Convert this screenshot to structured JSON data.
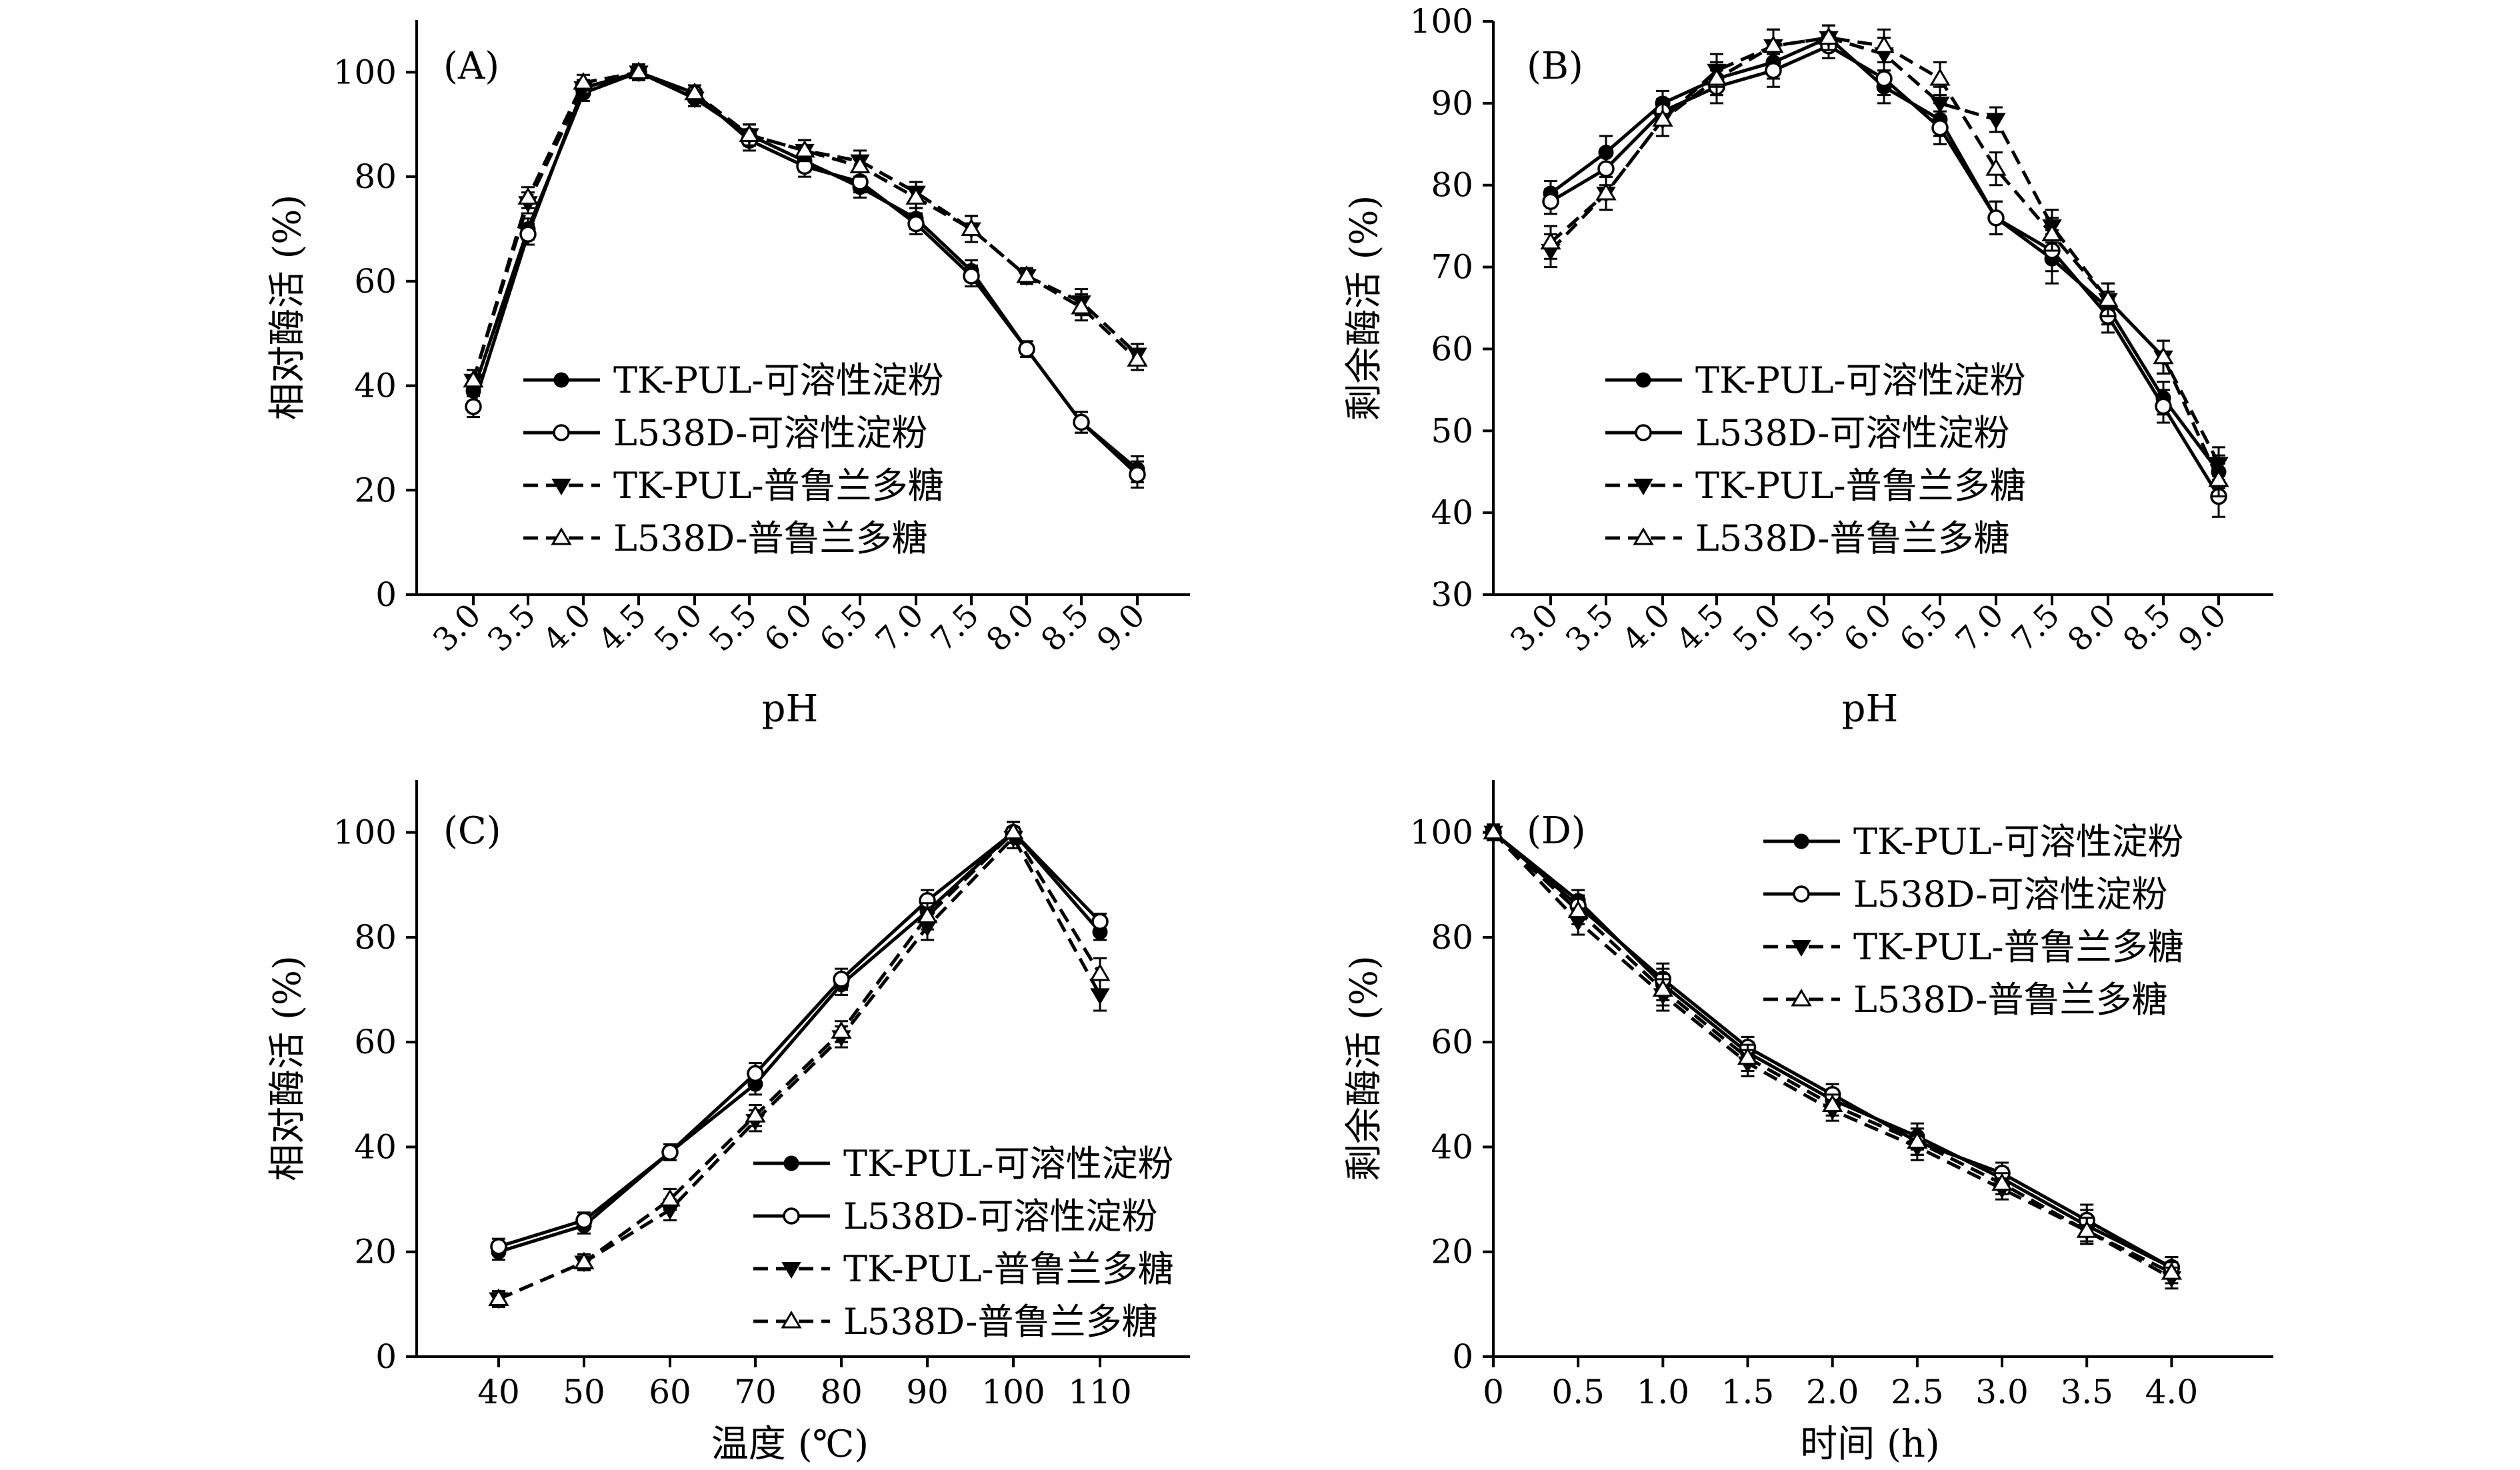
{
  "legend_entries": [
    "TK-PUL-可溶性淀粉",
    "L538D-可溶性淀粉",
    "TK-PUL-普鲁兰多糖",
    "L538D-普鲁兰多糖"
  ],
  "chart_data": [
    {
      "panel": "(A)",
      "type": "line",
      "xlabel": "pH",
      "ylabel": "相对酶活 (%)",
      "categories": [
        "3.0",
        "3.5",
        "4.0",
        "4.5",
        "5.0",
        "5.5",
        "6.0",
        "6.5",
        "7.0",
        "7.5",
        "8.0",
        "8.5",
        "9.0"
      ],
      "ylim": [
        0,
        110
      ],
      "yticks": [
        0,
        20,
        40,
        60,
        80,
        100
      ],
      "legend_position": "center-left",
      "series": [
        {
          "name": "TK-PUL-可溶性淀粉",
          "values": [
            39,
            70,
            96,
            100,
            95,
            88,
            83,
            78,
            72,
            62,
            47,
            33,
            24
          ],
          "err": [
            2,
            2,
            1.5,
            1.5,
            1.5,
            2,
            2,
            2,
            2,
            2,
            1.5,
            2,
            2.5
          ]
        },
        {
          "name": "L538D-可溶性淀粉",
          "values": [
            36,
            69,
            97,
            100,
            96,
            87,
            82,
            79,
            71,
            61,
            47,
            33,
            23
          ],
          "err": [
            2,
            2,
            1.5,
            1.5,
            1.5,
            2,
            2,
            2,
            2,
            2,
            1.5,
            2,
            2.5
          ]
        },
        {
          "name": "TK-PUL-普鲁兰多糖",
          "values": [
            41,
            75,
            97,
            100,
            95,
            88,
            85,
            83,
            77,
            70,
            61,
            56,
            46
          ],
          "err": [
            2,
            2,
            1.5,
            1.5,
            1.5,
            2,
            2,
            2,
            2,
            2.5,
            1.5,
            2.5,
            2
          ]
        },
        {
          "name": "L538D-普鲁兰多糖",
          "values": [
            41,
            76,
            98,
            100,
            96,
            88,
            85,
            82,
            76,
            70,
            61,
            55,
            45
          ],
          "err": [
            2,
            2,
            1.5,
            1.5,
            1.5,
            2,
            2,
            2,
            2,
            2.5,
            1.5,
            2.5,
            2
          ]
        }
      ]
    },
    {
      "panel": "(B)",
      "type": "line",
      "xlabel": "pH",
      "ylabel": "剩余酶活 (%)",
      "categories": [
        "3.0",
        "3.5",
        "4.0",
        "4.5",
        "5.0",
        "5.5",
        "6.0",
        "6.5",
        "7.0",
        "7.5",
        "8.0",
        "8.5",
        "9.0"
      ],
      "ylim": [
        30,
        100
      ],
      "yticks": [
        30,
        40,
        50,
        60,
        70,
        80,
        90,
        100
      ],
      "legend_position": "center-left",
      "series": [
        {
          "name": "TK-PUL-可溶性淀粉",
          "values": [
            79,
            84,
            90,
            93,
            95,
            98,
            92,
            88,
            76,
            71,
            65,
            54,
            45
          ],
          "err": [
            1.5,
            2,
            1.5,
            2,
            2,
            1.5,
            2,
            2,
            2,
            3,
            2,
            2,
            2
          ]
        },
        {
          "name": "L538D-可溶性淀粉",
          "values": [
            78,
            82,
            89,
            92,
            94,
            97,
            93,
            87,
            76,
            72,
            64,
            53,
            42
          ],
          "err": [
            1.5,
            2,
            1.5,
            2,
            2,
            1.5,
            2,
            2,
            2,
            2.5,
            2,
            2,
            2.5
          ]
        },
        {
          "name": "TK-PUL-普鲁兰多糖",
          "values": [
            72,
            79,
            88,
            94,
            97,
            98,
            96,
            90,
            88,
            75,
            66,
            59,
            46
          ],
          "err": [
            2,
            2,
            2,
            2,
            2,
            1.5,
            2,
            2,
            1.5,
            2,
            2,
            2,
            2
          ]
        },
        {
          "name": "L538D-普鲁兰多糖",
          "values": [
            73,
            79,
            88,
            93,
            97,
            98,
            97,
            93,
            82,
            74,
            66,
            59,
            44
          ],
          "err": [
            2,
            2,
            2,
            2,
            2,
            1.5,
            2,
            2,
            2,
            2,
            2,
            2,
            2
          ]
        }
      ]
    },
    {
      "panel": "(C)",
      "type": "line",
      "xlabel": "温度 (℃)",
      "ylabel": "相对酶活 (%)",
      "categories": [
        "40",
        "50",
        "60",
        "70",
        "80",
        "90",
        "100",
        "110"
      ],
      "ylim": [
        0,
        110
      ],
      "yticks": [
        0,
        20,
        40,
        60,
        80,
        100
      ],
      "legend_position": "bottom-right",
      "series": [
        {
          "name": "TK-PUL-可溶性淀粉",
          "values": [
            20,
            25,
            39,
            52,
            71,
            85,
            100,
            81
          ],
          "err": [
            1.5,
            1.5,
            1.5,
            2,
            2,
            2,
            2,
            1.5
          ]
        },
        {
          "name": "L538D-可溶性淀粉",
          "values": [
            21,
            26,
            39,
            54,
            72,
            87,
            100,
            83
          ],
          "err": [
            1.5,
            1.5,
            1.5,
            2,
            2,
            2,
            2,
            1.5
          ]
        },
        {
          "name": "TK-PUL-普鲁兰多糖",
          "values": [
            11,
            18,
            28,
            45,
            61,
            82,
            99,
            69
          ],
          "err": [
            1.5,
            1.5,
            2,
            2,
            2,
            2.5,
            2,
            3
          ]
        },
        {
          "name": "L538D-普鲁兰多糖",
          "values": [
            11,
            18,
            30,
            46,
            62,
            84,
            100,
            73
          ],
          "err": [
            1.5,
            1.5,
            2,
            2,
            2,
            2.5,
            2,
            3
          ]
        }
      ]
    },
    {
      "panel": "(D)",
      "type": "line",
      "xlabel": "时间 (h)",
      "ylabel": "剩余酶活 (%)",
      "x": [
        0,
        0.5,
        1.0,
        1.5,
        2.0,
        2.5,
        3.0,
        3.5,
        4.0
      ],
      "xticks": [
        "0",
        "0.5",
        "1.0",
        "1.5",
        "2.0",
        "2.5",
        "3.0",
        "3.5",
        "4.0"
      ],
      "xlim": [
        0,
        4.6
      ],
      "ylim": [
        0,
        110
      ],
      "yticks": [
        0,
        20,
        40,
        60,
        80,
        100
      ],
      "legend_position": "top-right",
      "series": [
        {
          "name": "TK-PUL-可溶性淀粉",
          "values": [
            100,
            87,
            71,
            58,
            49,
            42,
            34,
            25,
            17
          ],
          "err": [
            1.5,
            2,
            3,
            2,
            2,
            2.5,
            2,
            3,
            2
          ]
        },
        {
          "name": "L538D-可溶性淀粉",
          "values": [
            100,
            86,
            72,
            59,
            50,
            41,
            35,
            26,
            17
          ],
          "err": [
            1.5,
            2,
            3,
            2,
            2,
            2.5,
            2,
            3,
            2
          ]
        },
        {
          "name": "TK-PUL-普鲁兰多糖",
          "values": [
            100,
            83,
            69,
            56,
            47,
            40,
            32,
            24,
            15
          ],
          "err": [
            1.5,
            2.5,
            3,
            2.5,
            2,
            2.5,
            2,
            2.5,
            2
          ]
        },
        {
          "name": "L538D-普鲁兰多糖",
          "values": [
            100,
            85,
            70,
            57,
            48,
            41,
            33,
            24,
            16
          ],
          "err": [
            1.5,
            2.5,
            3,
            2.5,
            2,
            2.5,
            2,
            2.5,
            2
          ]
        }
      ]
    }
  ]
}
